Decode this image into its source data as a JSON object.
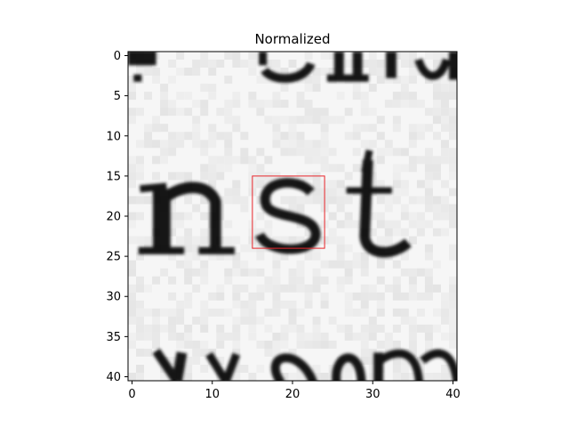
{
  "chart_data": {
    "type": "heatmap",
    "title": "Normalized",
    "xlabel": "",
    "ylabel": "",
    "image_size": [
      41,
      41
    ],
    "xlim": [
      -0.5,
      40.5
    ],
    "ylim": [
      40.5,
      -0.5
    ],
    "xticks": [
      0,
      10,
      20,
      30,
      40
    ],
    "yticks": [
      0,
      5,
      10,
      15,
      20,
      25,
      30,
      35,
      40
    ],
    "colormap": "gray",
    "content": "grayscale crop of printed text showing the letters 'nst'",
    "highlight_box": {
      "color": "#e8262b",
      "x0": 15,
      "y0": 15,
      "x1": 24,
      "y1": 24
    },
    "grid": false,
    "legend": "none"
  }
}
